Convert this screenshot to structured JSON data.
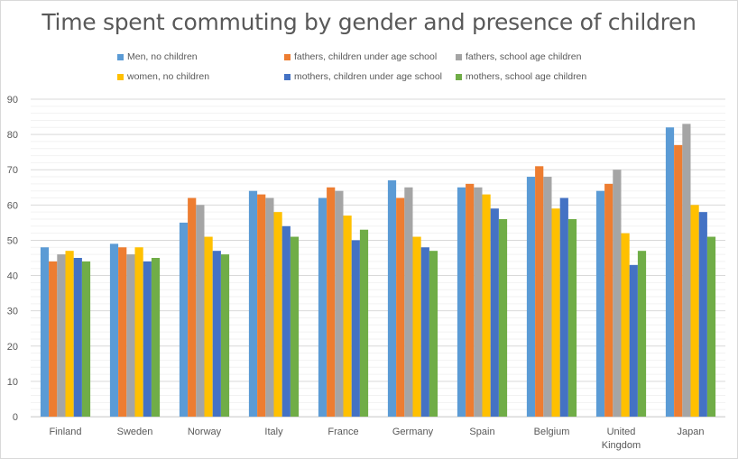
{
  "chart_data": {
    "type": "bar",
    "title": "Time spent commuting by gender and presence of children",
    "xlabel": "",
    "ylabel": "",
    "ylim": [
      0,
      90
    ],
    "yticks": [
      0,
      10,
      20,
      30,
      40,
      50,
      60,
      70,
      80,
      90
    ],
    "ytick_labels": [
      "0",
      "10",
      "20",
      "30",
      "40",
      "50",
      "60",
      "70",
      "80",
      "90"
    ],
    "minor_grid_step": 2,
    "grid": true,
    "legend_position": "top",
    "categories": [
      "Finland",
      "Sweden",
      "Norway",
      "Italy",
      "France",
      "Germany",
      "Spain",
      "Belgium",
      "United Kingdom",
      "Japan"
    ],
    "category_label_lines": [
      [
        "Finland"
      ],
      [
        "Sweden"
      ],
      [
        "Norway"
      ],
      [
        "Italy"
      ],
      [
        "France"
      ],
      [
        "Germany"
      ],
      [
        "Spain"
      ],
      [
        "Belgium"
      ],
      [
        "United",
        "Kingdom"
      ],
      [
        "Japan"
      ]
    ],
    "series": [
      {
        "name": "Men, no children",
        "color": "#5b9bd5",
        "values": [
          48,
          49,
          55,
          64,
          62,
          67,
          65,
          68,
          64,
          82
        ]
      },
      {
        "name": "fathers, children under age school",
        "color": "#ed7d31",
        "values": [
          44,
          48,
          62,
          63,
          65,
          62,
          66,
          71,
          66,
          77
        ]
      },
      {
        "name": "fathers, school age children",
        "color": "#a5a5a5",
        "values": [
          46,
          46,
          60,
          62,
          64,
          65,
          65,
          68,
          70,
          83
        ]
      },
      {
        "name": "women, no children",
        "color": "#ffc000",
        "values": [
          47,
          48,
          51,
          58,
          57,
          51,
          63,
          59,
          52,
          60
        ]
      },
      {
        "name": "mothers, children under age school",
        "color": "#4472c4",
        "values": [
          45,
          44,
          47,
          54,
          50,
          48,
          59,
          62,
          43,
          58
        ]
      },
      {
        "name": "mothers, school age children",
        "color": "#70ad47",
        "values": [
          44,
          45,
          46,
          51,
          53,
          47,
          56,
          56,
          47,
          51
        ]
      }
    ]
  }
}
